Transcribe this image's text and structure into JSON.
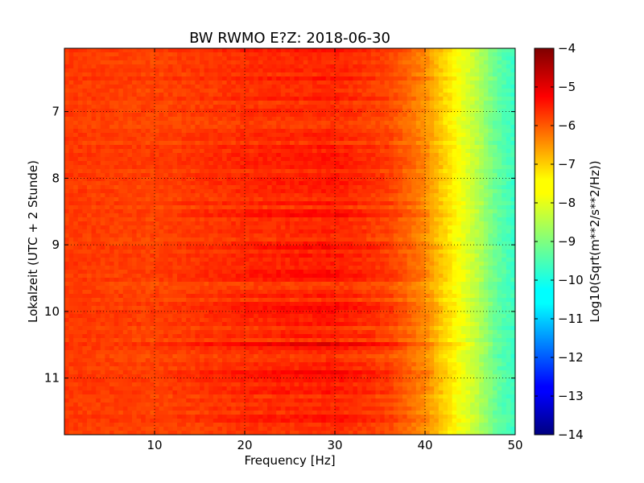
{
  "chart_data": {
    "type": "heatmap",
    "title": "BW RWMO E?Z: 2018-06-30",
    "xlabel": "Frequency [Hz]",
    "ylabel": "Lokalzeit (UTC + 2 Stunde)",
    "xlim": [
      0,
      50
    ],
    "ylim": [
      6.05,
      11.85
    ],
    "y_inverted": true,
    "x_ticks": [
      "10",
      "20",
      "30",
      "40",
      "50"
    ],
    "x_tick_values": [
      10,
      20,
      30,
      40,
      50
    ],
    "y_ticks": [
      "7",
      "8",
      "9",
      "10",
      "11"
    ],
    "y_tick_values": [
      7,
      8,
      9,
      10,
      11
    ],
    "grid": true,
    "colormap": "jet",
    "colorbar": {
      "label": "Log10(Sqrt(m**2/s**2/Hz))",
      "min": -14,
      "max": -4,
      "ticks": [
        "−4",
        "−5",
        "−6",
        "−7",
        "−8",
        "−9",
        "−10",
        "−11",
        "−12",
        "−13",
        "−14"
      ],
      "tick_values": [
        -4,
        -5,
        -6,
        -7,
        -8,
        -9,
        -10,
        -11,
        -12,
        -13,
        -14
      ]
    },
    "value_profile_by_frequency": {
      "frequency_hz": [
        0,
        10,
        20,
        30,
        36,
        40,
        42,
        44,
        46,
        48,
        50
      ],
      "log10_amplitude": [
        -5.8,
        -5.9,
        -5.7,
        -5.6,
        -5.9,
        -6.6,
        -7.3,
        -7.9,
        -8.5,
        -9.3,
        -9.7
      ]
    },
    "strong_bands_local_time": [
      8.1,
      8.55,
      9.0,
      9.45,
      9.95,
      10.5,
      10.9
    ]
  }
}
